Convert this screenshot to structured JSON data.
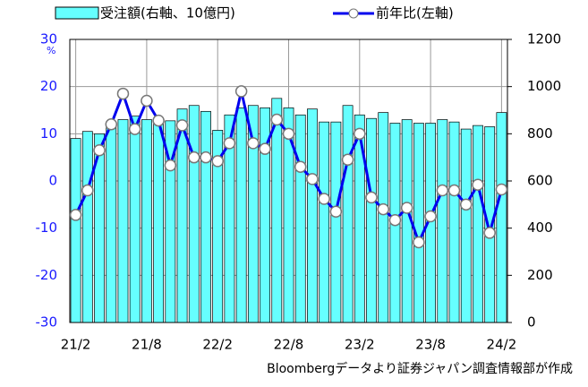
{
  "chart_data": {
    "type": "bar-line",
    "legend": [
      "受注額(右軸、10億円)",
      "前年比(左軸)"
    ],
    "y_unit": "%",
    "source": "Bloombergデータより証券ジャパン調査情報部が作成",
    "categories": [
      "21/2",
      null,
      null,
      null,
      null,
      null,
      "21/8",
      null,
      null,
      null,
      null,
      null,
      "22/2",
      null,
      null,
      null,
      null,
      null,
      "22/8",
      null,
      null,
      null,
      null,
      null,
      "23/2",
      null,
      null,
      null,
      null,
      null,
      "23/8",
      null,
      null,
      null,
      null,
      null,
      "24/2"
    ],
    "series": [
      {
        "name": "受注額(右軸、10億円)",
        "type": "bar",
        "axis": "y2",
        "color": "#66ffff",
        "values": [
          780,
          810,
          800,
          835,
          860,
          875,
          860,
          865,
          855,
          905,
          920,
          895,
          815,
          880,
          910,
          920,
          910,
          950,
          910,
          880,
          905,
          850,
          850,
          920,
          880,
          865,
          890,
          845,
          860,
          845,
          845,
          860,
          850,
          820,
          835,
          830,
          890
        ]
      },
      {
        "name": "前年比(左軸)",
        "type": "line",
        "color": "#0000ee",
        "values": [
          -7.2,
          -2,
          6.5,
          12,
          18.5,
          11,
          17,
          12.8,
          3.3,
          11.8,
          5,
          5,
          4.2,
          8,
          19,
          8,
          6.8,
          13,
          10,
          3,
          0.4,
          -3.8,
          -6.5,
          4.5,
          10,
          -3.5,
          -6,
          -8.3,
          -5.7,
          -13,
          -7.5,
          -2,
          -2,
          -5,
          -0.8,
          -11,
          -1.8
        ]
      }
    ],
    "ylim": [
      -30,
      30
    ],
    "yticks": [
      -30,
      -20,
      -10,
      0,
      10,
      20,
      30
    ],
    "y2lim": [
      0,
      1200
    ],
    "y2ticks": [
      0,
      200,
      400,
      600,
      800,
      1000,
      1200
    ],
    "grid": true
  }
}
